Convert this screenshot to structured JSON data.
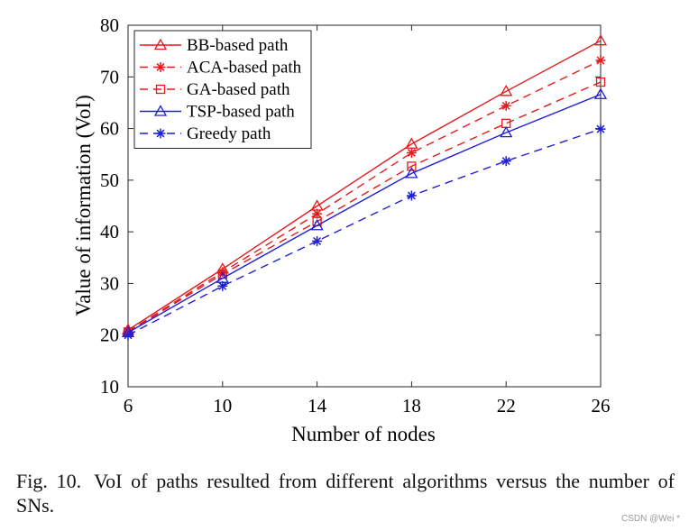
{
  "chart_data": {
    "type": "line",
    "title": "",
    "xlabel": "Number of nodes",
    "ylabel": "Value of information (VoI)",
    "x": [
      6,
      10,
      14,
      18,
      22,
      26
    ],
    "xlim": [
      6,
      26
    ],
    "ylim": [
      10,
      80
    ],
    "xticks": [
      6,
      10,
      14,
      18,
      22,
      26
    ],
    "yticks": [
      10,
      20,
      30,
      40,
      50,
      60,
      70,
      80
    ],
    "legend_position": "top-left",
    "grid": false,
    "series": [
      {
        "name": "BB-based path",
        "color": "#e41a1c",
        "dash": "solid",
        "marker": "triangle",
        "values": [
          21.0,
          32.8,
          45.0,
          57.0,
          67.2,
          77.0
        ]
      },
      {
        "name": "ACA-based path",
        "color": "#e41a1c",
        "dash": "dashed",
        "marker": "asterisk",
        "values": [
          20.7,
          32.2,
          43.5,
          55.3,
          64.4,
          73.2
        ]
      },
      {
        "name": "GA-based path",
        "color": "#e41a1c",
        "dash": "dashed",
        "marker": "square",
        "values": [
          20.6,
          31.8,
          42.0,
          52.7,
          61.0,
          69.0
        ]
      },
      {
        "name": "TSP-based path",
        "color": "#1f1fd6",
        "dash": "solid",
        "marker": "triangle",
        "values": [
          20.5,
          31.0,
          41.2,
          51.3,
          59.2,
          66.6
        ]
      },
      {
        "name": "Greedy path",
        "color": "#1f1fd6",
        "dash": "dashed",
        "marker": "asterisk",
        "values": [
          20.0,
          29.5,
          38.2,
          47.0,
          53.7,
          59.9
        ]
      }
    ]
  },
  "caption": {
    "label": "Fig. 10.",
    "text": "VoI of paths resulted from different algorithms versus the number of SNs."
  },
  "watermark": "CSDN @Wei *"
}
